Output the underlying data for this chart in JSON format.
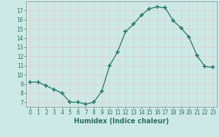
{
  "x": [
    0,
    1,
    2,
    3,
    4,
    5,
    6,
    7,
    8,
    9,
    10,
    11,
    12,
    13,
    14,
    15,
    16,
    17,
    18,
    19,
    20,
    21,
    22,
    23
  ],
  "y": [
    9.2,
    9.2,
    8.8,
    8.4,
    8.0,
    7.0,
    7.0,
    6.8,
    7.0,
    8.2,
    11.0,
    12.5,
    14.7,
    15.5,
    16.5,
    17.2,
    17.4,
    17.3,
    15.9,
    15.1,
    14.1,
    12.1,
    10.9,
    10.8
  ],
  "line_color": "#2d7b6e",
  "marker": "+",
  "marker_size": 4,
  "linewidth": 1.0,
  "xlabel": "Humidex (Indice chaleur)",
  "xlim": [
    -0.5,
    23.5
  ],
  "ylim": [
    6.5,
    18.0
  ],
  "yticks": [
    7,
    8,
    9,
    10,
    11,
    12,
    13,
    14,
    15,
    16,
    17
  ],
  "background_color": "#cce9e5",
  "grid_color": "#e8c8c8",
  "tick_fontsize": 5.5,
  "xlabel_fontsize": 7,
  "label_color": "#2d6e62"
}
